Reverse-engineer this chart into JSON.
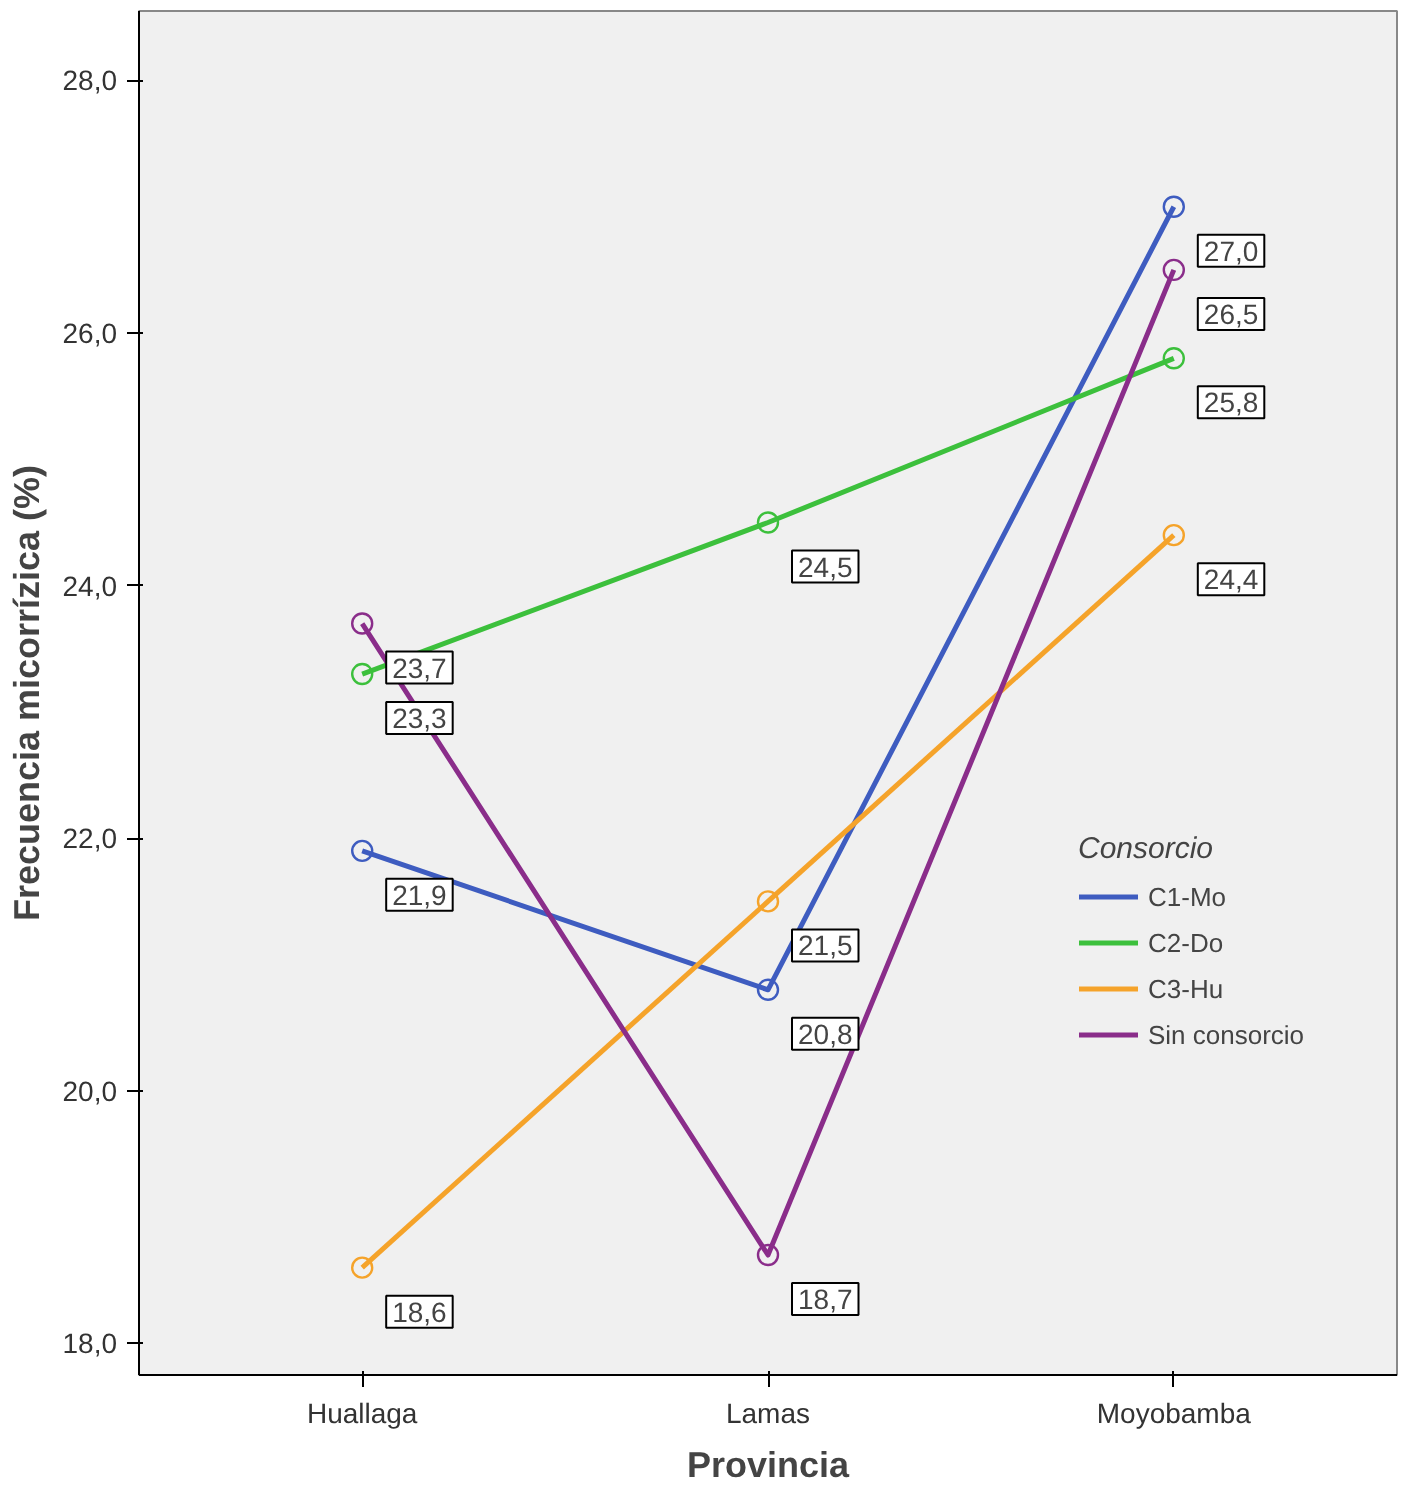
{
  "chart_data": {
    "type": "line",
    "xlabel": "Provincia",
    "ylabel": "Frecuencia micorrízica (%)",
    "categories": [
      "Huallaga",
      "Lamas",
      "Moyobamba"
    ],
    "series": [
      {
        "name": "C1-Mo",
        "color": "#3e5cc0",
        "values": [
          21.9,
          20.8,
          27.0
        ],
        "value_labels": [
          "21,9",
          "20,8",
          "27,0"
        ]
      },
      {
        "name": "C2-Do",
        "color": "#3cc03c",
        "values": [
          23.3,
          24.5,
          25.8
        ],
        "value_labels": [
          "23,3",
          "24,5",
          "25,8"
        ]
      },
      {
        "name": "C3-Hu",
        "color": "#f5a32a",
        "values": [
          18.6,
          21.5,
          24.4
        ],
        "value_labels": [
          "18,6",
          "21,5",
          "24,4"
        ]
      },
      {
        "name": "Sin consorcio",
        "color": "#8a2d8a",
        "values": [
          23.7,
          18.7,
          26.5
        ],
        "value_labels": [
          "23,7",
          "18,7",
          "26,5"
        ]
      }
    ],
    "legend_title": "Consorcio",
    "legend": "right",
    "ylim": [
      17.75,
      28.55
    ],
    "yticks": [
      {
        "value": 18,
        "label": "18,0"
      },
      {
        "value": 20,
        "label": "20,0"
      },
      {
        "value": 22,
        "label": "22,0"
      },
      {
        "value": 24,
        "label": "24,0"
      },
      {
        "value": 26,
        "label": "26,0"
      },
      {
        "value": 28,
        "label": "28,0"
      }
    ],
    "grid": false,
    "marker": "circle",
    "line_style": "solid"
  }
}
